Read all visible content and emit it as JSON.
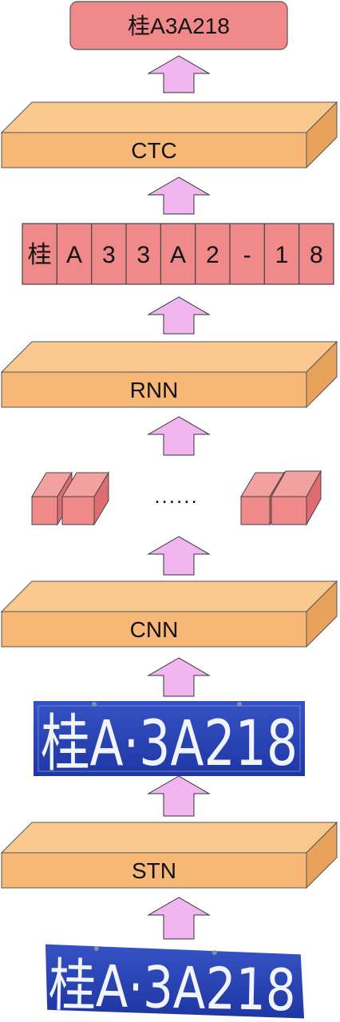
{
  "colors": {
    "box_fill": "#f7b877",
    "box_top": "#f9c98f",
    "box_side": "#e8a25c",
    "box_stroke": "#555555",
    "pink_fill": "#f0898a",
    "pink_dark": "#dd6d70",
    "arrow_fill": "#f1b6f0",
    "plate_fill": "#2a45b6",
    "plate_dark": "#1c2f8a"
  },
  "output": {
    "text": "桂A3A218"
  },
  "layers": {
    "ctc": "CTC",
    "rnn": "RNN",
    "cnn": "CNN",
    "stn": "STN"
  },
  "sequence": {
    "cells": [
      "桂",
      "A",
      "3",
      "3",
      "A",
      "2",
      "-",
      "1",
      "8"
    ]
  },
  "features": {
    "ellipsis": "......"
  },
  "plates": {
    "rectified": {
      "text": "桂A·3A218",
      "icon": "license-plate-rectified"
    },
    "input": {
      "text": "桂A·3A218",
      "icon": "license-plate-input"
    }
  }
}
